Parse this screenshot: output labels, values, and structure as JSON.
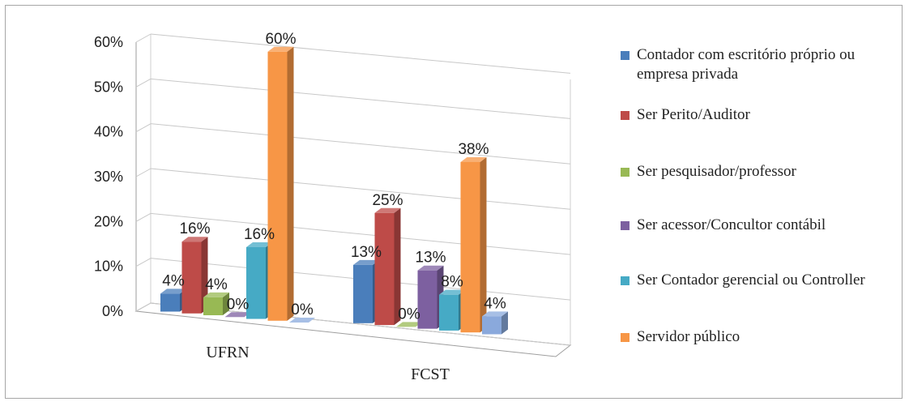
{
  "chart_data": {
    "type": "bar",
    "categories": [
      "UFRN",
      "FCST"
    ],
    "yticks": [
      "0%",
      "10%",
      "20%",
      "30%",
      "40%",
      "50%",
      "60%"
    ],
    "ylim": [
      0,
      60
    ],
    "grid": true,
    "legend_position": "right",
    "series": [
      {
        "name": "Contador com escritório próprio ou empresa privada",
        "color": "#4a7ebb",
        "values": [
          4,
          13
        ],
        "labels": [
          "4%",
          "13%"
        ]
      },
      {
        "name": "Ser Perito/Auditor",
        "color": "#be4b48",
        "values": [
          16,
          25
        ],
        "labels": [
          "16%",
          "25%"
        ]
      },
      {
        "name": "Ser pesquisador/professor",
        "color": "#98b954",
        "values": [
          4,
          0
        ],
        "labels": [
          "4%",
          "0%"
        ]
      },
      {
        "name": "Ser acessor/Concultor contábil",
        "color": "#7d60a0",
        "values": [
          0,
          13
        ],
        "labels": [
          "0%",
          "13%"
        ]
      },
      {
        "name": "Ser Contador gerencial ou Controller",
        "color": "#46aac5",
        "values": [
          16,
          8
        ],
        "labels": [
          "16%",
          "8%"
        ]
      },
      {
        "name": "Servidor público",
        "color": "#f79646",
        "values": [
          60,
          38
        ],
        "labels": [
          "60%",
          "38%"
        ]
      },
      {
        "color": "#8aa9dc",
        "values": [
          0,
          4
        ],
        "labels": [
          "0%",
          "4%"
        ]
      }
    ]
  }
}
